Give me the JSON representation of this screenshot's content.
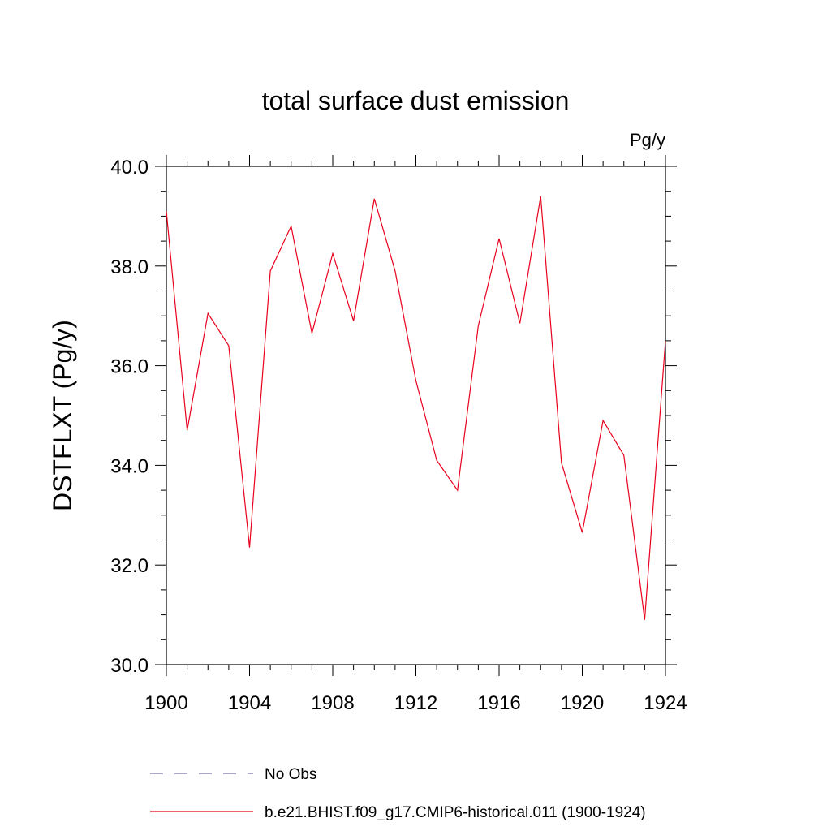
{
  "chart_data": {
    "type": "line",
    "title": "total surface dust emission",
    "units_label": "Pg/y",
    "xlabel": "",
    "ylabel": "DSTFLXT  (Pg/y)",
    "xlim": [
      1900,
      1924
    ],
    "ylim": [
      30.0,
      40.0
    ],
    "x_ticks": [
      "1900",
      "1904",
      "1908",
      "1912",
      "1916",
      "1920",
      "1924"
    ],
    "y_ticks": [
      "30.0",
      "32.0",
      "34.0",
      "36.0",
      "38.0",
      "40.0"
    ],
    "grid": false,
    "legend_position": "bottom",
    "series": [
      {
        "name": "No Obs",
        "color": "#7a6fb0",
        "style": "dashed",
        "values": []
      },
      {
        "name": "b.e21.BHIST.f09_g17.CMIP6-historical.011 (1900-1924)",
        "color": "#e8001c",
        "style": "solid",
        "x": [
          1900,
          1901,
          1902,
          1903,
          1904,
          1905,
          1906,
          1907,
          1908,
          1909,
          1910,
          1911,
          1912,
          1913,
          1914,
          1915,
          1916,
          1917,
          1918,
          1919,
          1920,
          1921,
          1922,
          1923,
          1924
        ],
        "values": [
          39.1,
          34.7,
          37.05,
          36.4,
          32.35,
          37.9,
          38.8,
          36.65,
          38.25,
          36.9,
          39.35,
          37.9,
          35.7,
          34.1,
          33.5,
          36.8,
          38.55,
          36.85,
          39.4,
          34.05,
          32.65,
          34.9,
          34.2,
          30.9,
          36.5
        ]
      }
    ]
  }
}
